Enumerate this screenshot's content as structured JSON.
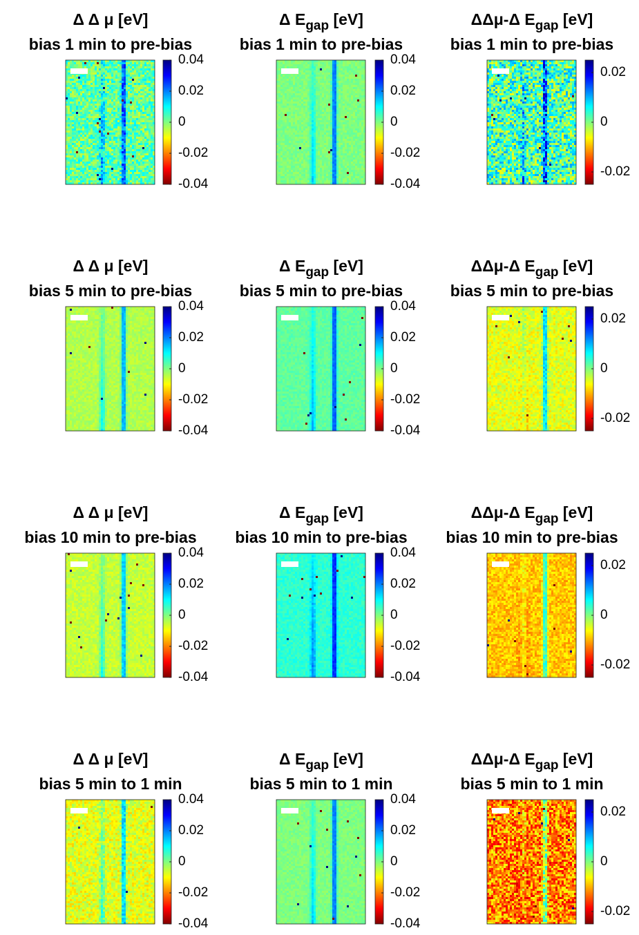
{
  "chart_data": [
    {
      "type": "heatmap",
      "title": [
        "Δ Δ μ [eV]"
      ],
      "subtitle": "bias 1 min to pre-bias",
      "clim": [
        -0.04,
        0.04
      ],
      "cticks": [
        0.04,
        0.02,
        0,
        -0.02,
        -0.04
      ]
    },
    {
      "type": "heatmap",
      "title": [
        "Δ E",
        "gap",
        " [eV]"
      ],
      "subtitle": "bias 1 min to pre-bias",
      "clim": [
        -0.04,
        0.04
      ],
      "cticks": [
        0.04,
        0.02,
        0,
        -0.02,
        -0.04
      ]
    },
    {
      "type": "heatmap",
      "title": [
        "ΔΔμ-Δ E",
        "gap",
        " [eV]"
      ],
      "subtitle": "bias 1 min to pre-bias",
      "clim": [
        -0.025,
        0.025
      ],
      "cticks": [
        0.02,
        0,
        -0.02
      ]
    },
    {
      "type": "heatmap",
      "title": [
        "Δ Δ μ [eV]"
      ],
      "subtitle": "bias 5 min to pre-bias",
      "clim": [
        -0.04,
        0.04
      ],
      "cticks": [
        0.04,
        0.02,
        0,
        -0.02,
        -0.04
      ]
    },
    {
      "type": "heatmap",
      "title": [
        "Δ E",
        "gap",
        " [eV]"
      ],
      "subtitle": "bias 5 min to pre-bias",
      "clim": [
        -0.04,
        0.04
      ],
      "cticks": [
        0.04,
        0.02,
        0,
        -0.02,
        -0.04
      ]
    },
    {
      "type": "heatmap",
      "title": [
        "ΔΔμ-Δ E",
        "gap",
        " [eV]"
      ],
      "subtitle": "bias 5 min to pre-bias",
      "clim": [
        -0.025,
        0.025
      ],
      "cticks": [
        0.02,
        0,
        -0.02
      ]
    },
    {
      "type": "heatmap",
      "title": [
        "Δ Δ μ [eV]"
      ],
      "subtitle": "bias 10 min to pre-bias",
      "clim": [
        -0.04,
        0.04
      ],
      "cticks": [
        0.04,
        0.02,
        0,
        -0.02,
        -0.04
      ]
    },
    {
      "type": "heatmap",
      "title": [
        "Δ E",
        "gap",
        " [eV]"
      ],
      "subtitle": "bias 10 min to pre-bias",
      "clim": [
        -0.04,
        0.04
      ],
      "cticks": [
        0.04,
        0.02,
        0,
        -0.02,
        -0.04
      ]
    },
    {
      "type": "heatmap",
      "title": [
        "ΔΔμ-Δ E",
        "gap",
        " [eV]"
      ],
      "subtitle": "bias 10 min to pre-bias",
      "clim": [
        -0.025,
        0.025
      ],
      "cticks": [
        0.02,
        0,
        -0.02
      ]
    },
    {
      "type": "heatmap",
      "title": [
        "Δ Δ μ [eV]"
      ],
      "subtitle": "bias 5 min to 1 min",
      "clim": [
        -0.04,
        0.04
      ],
      "cticks": [
        0.04,
        0.02,
        0,
        -0.02,
        -0.04
      ]
    },
    {
      "type": "heatmap",
      "title": [
        "Δ E",
        "gap",
        " [eV]"
      ],
      "subtitle": "bias 5 min to 1 min",
      "clim": [
        -0.04,
        0.04
      ],
      "cticks": [
        0.04,
        0.02,
        0,
        -0.02,
        -0.04
      ]
    },
    {
      "type": "heatmap",
      "title": [
        "ΔΔμ-Δ E",
        "gap",
        " [eV]"
      ],
      "subtitle": "bias 5 min to 1 min",
      "clim": [
        -0.025,
        0.025
      ],
      "cticks": [
        0.02,
        0,
        -0.02
      ]
    }
  ]
}
